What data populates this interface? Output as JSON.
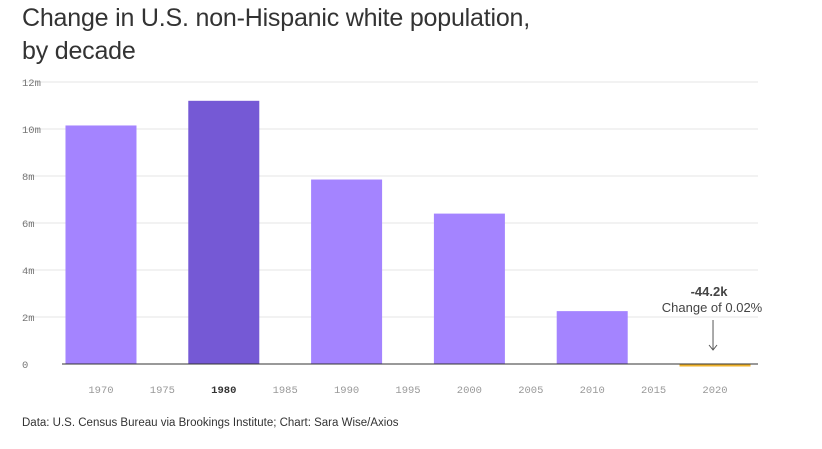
{
  "title": "Change in U.S. non-Hispanic white population, by decade",
  "source": "Data: U.S. Census Bureau via Brookings Institute; Chart: Sara Wise/Axios",
  "colors": {
    "bar": "#a484ff",
    "highlight": "#7559d5",
    "negative": "#f0b32b",
    "grid": "#e6e6e6",
    "axis": "#333333"
  },
  "chart_data": {
    "type": "bar",
    "title": "Change in U.S. non-Hispanic white population, by decade",
    "xlabel": "",
    "ylabel": "",
    "ylim": [
      0,
      12000000
    ],
    "yticks": [
      0,
      2000000,
      4000000,
      6000000,
      8000000,
      10000000,
      12000000
    ],
    "ytick_labels": [
      "0",
      "2m",
      "4m",
      "6m",
      "8m",
      "10m",
      "12m"
    ],
    "xticks": [
      1970,
      1975,
      1980,
      1985,
      1990,
      1995,
      2000,
      2005,
      2010,
      2015,
      2020
    ],
    "xtick_labels": [
      "1970",
      "1975",
      "1980",
      "1985",
      "1990",
      "1995",
      "2000",
      "2005",
      "2010",
      "2015",
      "2020"
    ],
    "highlight_tick": "1980",
    "categories": [
      "1970",
      "1980",
      "1990",
      "2000",
      "2010",
      "2020"
    ],
    "values": [
      10150000,
      11200000,
      7850000,
      6400000,
      2250000,
      -44200
    ],
    "highlight_category": "1980",
    "annotation": {
      "category": "2020",
      "value_label": "-44.2k",
      "text": "Change of 0.02%"
    }
  }
}
